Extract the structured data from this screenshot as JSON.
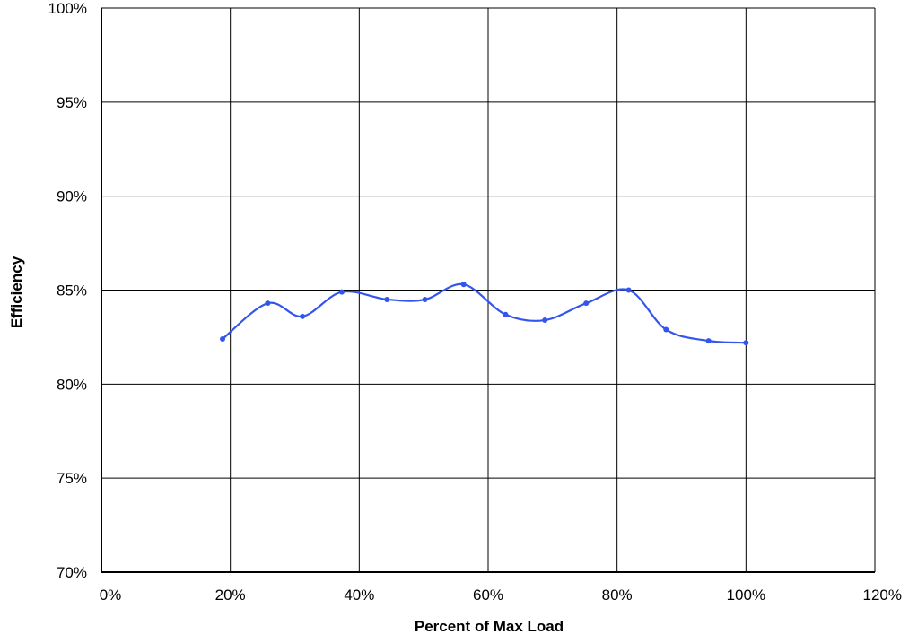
{
  "chart_data": {
    "type": "line",
    "title": "",
    "xlabel": "Percent of Max Load",
    "ylabel": "Efficiency",
    "xlim": [
      0,
      120
    ],
    "ylim": [
      70,
      100
    ],
    "x_ticks": [
      0,
      20,
      40,
      60,
      80,
      100,
      120
    ],
    "y_ticks": [
      70,
      75,
      80,
      85,
      90,
      95,
      100
    ],
    "x_tick_labels": [
      "0%",
      "20%",
      "40%",
      "60%",
      "80%",
      "100%",
      "120%"
    ],
    "y_tick_labels": [
      "70%",
      "75%",
      "80%",
      "85%",
      "90%",
      "95%",
      "100%"
    ],
    "grid": true,
    "legend": "none",
    "series": [
      {
        "color": "#3355ee",
        "smooth": true,
        "x": [
          18.8,
          25.8,
          31.2,
          37.3,
          44.3,
          50.2,
          56.2,
          62.7,
          68.8,
          75.2,
          81.8,
          87.6,
          94.2,
          100
        ],
        "y": [
          82.4,
          84.3,
          83.6,
          84.9,
          84.5,
          84.5,
          85.3,
          83.7,
          83.4,
          84.3,
          85.0,
          82.9,
          82.3,
          82.2
        ]
      }
    ]
  }
}
